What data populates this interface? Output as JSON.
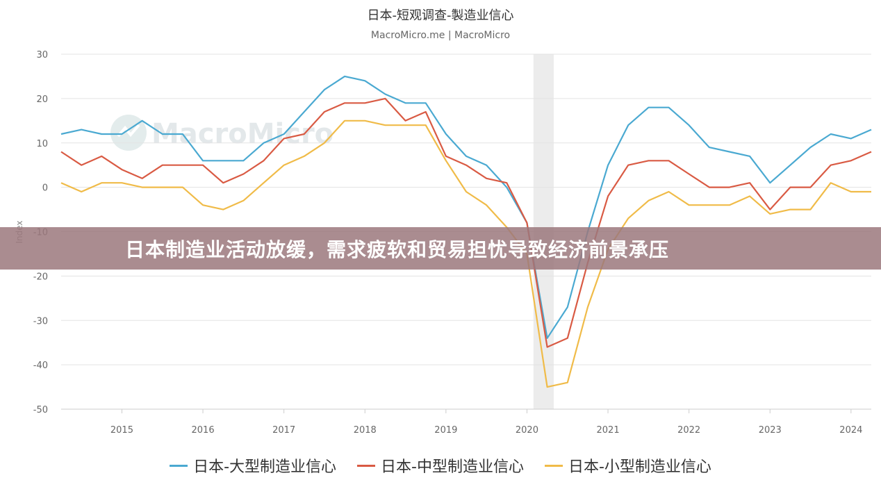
{
  "header": {
    "title": "日本-短观调查-製造业信心",
    "subtitle": "MacroMicro.me | MacroMicro",
    "watermark": "MacroMicro"
  },
  "banner": {
    "text": "日本制造业活动放缓，需求疲软和贸易担忧导致经济前景承压"
  },
  "colors": {
    "large": "#4aa9d1",
    "medium": "#d95a43",
    "small": "#f0bb48",
    "grid": "#e3e3e3",
    "recession": "#ececec"
  },
  "chart_data": {
    "type": "line",
    "title": "日本-短观调查-製造业信心",
    "subtitle": "MacroMicro.me | MacroMicro",
    "ylabel": "Index",
    "xlabel": "",
    "ylim": [
      -50,
      30
    ],
    "yticks": [
      30,
      20,
      10,
      0,
      -10,
      -20,
      -30,
      -40,
      -50
    ],
    "xlim": [
      2014.25,
      2024.25
    ],
    "xticks": [
      2015,
      2016,
      2017,
      2018,
      2019,
      2020,
      2021,
      2022,
      2023,
      2024
    ],
    "grid": true,
    "legend": "bottom",
    "shaded_ranges": [
      [
        2020.08,
        2020.33
      ]
    ],
    "x": [
      2014.25,
      2014.5,
      2014.75,
      2015.0,
      2015.25,
      2015.5,
      2015.75,
      2016.0,
      2016.25,
      2016.5,
      2016.75,
      2017.0,
      2017.25,
      2017.5,
      2017.75,
      2018.0,
      2018.25,
      2018.5,
      2018.75,
      2019.0,
      2019.25,
      2019.5,
      2019.75,
      2020.0,
      2020.25,
      2020.5,
      2020.75,
      2021.0,
      2021.25,
      2021.5,
      2021.75,
      2022.0,
      2022.25,
      2022.5,
      2022.75,
      2023.0,
      2023.25,
      2023.5,
      2023.75,
      2024.0,
      2024.25
    ],
    "series": [
      {
        "name": "日本-大型制造业信心",
        "color": "#4aa9d1",
        "values": [
          12,
          13,
          12,
          12,
          15,
          12,
          12,
          6,
          6,
          6,
          10,
          12,
          17,
          22,
          25,
          24,
          21,
          19,
          19,
          12,
          7,
          5,
          0,
          -8,
          -34,
          -27,
          -10,
          5,
          14,
          18,
          18,
          14,
          9,
          8,
          7,
          1,
          5,
          9,
          12,
          11,
          13
        ]
      },
      {
        "name": "日本-中型制造业信心",
        "color": "#d95a43",
        "values": [
          8,
          5,
          7,
          4,
          2,
          5,
          5,
          5,
          1,
          3,
          6,
          11,
          12,
          17,
          19,
          19,
          20,
          15,
          17,
          7,
          5,
          2,
          1,
          -8,
          -36,
          -34,
          -17,
          -2,
          5,
          6,
          6,
          3,
          0,
          0,
          1,
          -5,
          0,
          0,
          5,
          6,
          8
        ]
      },
      {
        "name": "日本-小型制造业信心",
        "color": "#f0bb48",
        "values": [
          1,
          -1,
          1,
          1,
          0,
          0,
          0,
          -4,
          -5,
          -3,
          1,
          5,
          7,
          10,
          15,
          15,
          14,
          14,
          14,
          6,
          -1,
          -4,
          -9,
          -15,
          -45,
          -44,
          -27,
          -14,
          -7,
          -3,
          -1,
          -4,
          -4,
          -4,
          -2,
          -6,
          -5,
          -5,
          1,
          -1,
          -1
        ]
      }
    ]
  }
}
